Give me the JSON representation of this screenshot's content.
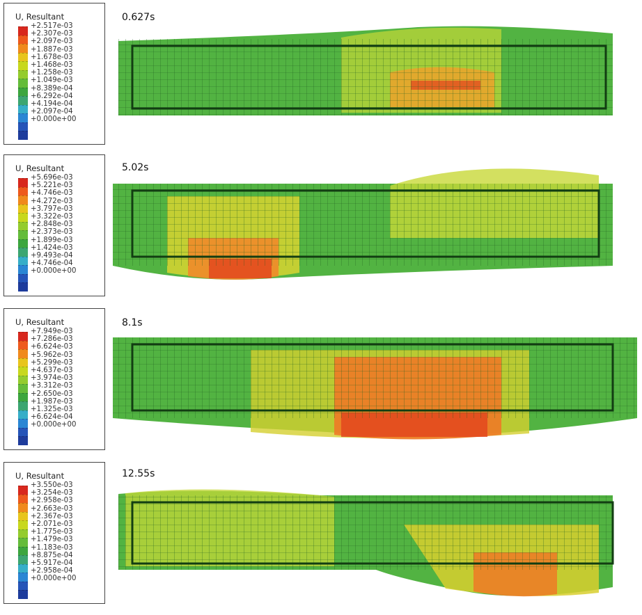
{
  "panels": [
    {
      "legend_title": "U, Resultant",
      "time_label": "0.627s",
      "ticks": [
        "+2.517e-03",
        "+2.307e-03",
        "+2.097e-03",
        "+1.887e-03",
        "+1.678e-03",
        "+1.468e-03",
        "+1.258e-03",
        "+1.049e-03",
        "+8.389e-04",
        "+6.292e-04",
        "+4.194e-04",
        "+2.097e-04",
        "+0.000e+00"
      ]
    },
    {
      "legend_title": "U, Resultant",
      "time_label": "5.02s",
      "ticks": [
        "+5.696e-03",
        "+5.221e-03",
        "+4.746e-03",
        "+4.272e-03",
        "+3.797e-03",
        "+3.322e-03",
        "+2.848e-03",
        "+2.373e-03",
        "+1.899e-03",
        "+1.424e-03",
        "+9.493e-04",
        "+4.746e-04",
        "+0.000e+00"
      ]
    },
    {
      "legend_title": "U, Resultant",
      "time_label": "8.1s",
      "ticks": [
        "+7.949e-03",
        "+7.286e-03",
        "+6.624e-03",
        "+5.962e-03",
        "+5.299e-03",
        "+4.637e-03",
        "+3.974e-03",
        "+3.312e-03",
        "+2.650e-03",
        "+1.987e-03",
        "+1.325e-03",
        "+6.624e-04",
        "+0.000e+00"
      ]
    },
    {
      "legend_title": "U, Resultant",
      "time_label": "12.55s",
      "ticks": [
        "+3.550e-03",
        "+3.254e-03",
        "+2.958e-03",
        "+2.663e-03",
        "+2.367e-03",
        "+2.071e-03",
        "+1.775e-03",
        "+1.479e-03",
        "+1.183e-03",
        "+8.875e-04",
        "+5.917e-04",
        "+2.958e-04",
        "+0.000e+00"
      ]
    }
  ],
  "colorbar": [
    "#d8281e",
    "#ee5a1e",
    "#f08a1e",
    "#e8c51e",
    "#c8d81e",
    "#94cc2e",
    "#64bc3a",
    "#3ca63e",
    "#3ca671",
    "#36aec8",
    "#2a86d4",
    "#2554b8",
    "#1e3c9c"
  ]
}
